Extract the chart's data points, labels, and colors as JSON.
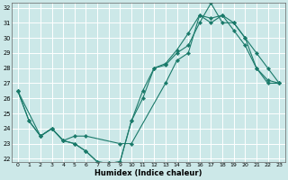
{
  "xlabel": "Humidex (Indice chaleur)",
  "bg_color": "#cce8e8",
  "grid_color": "#ffffff",
  "line_color": "#1a7a6a",
  "marker_color": "#1a7a6a",
  "xlim": [
    -0.5,
    23.5
  ],
  "ylim": [
    21.8,
    32.3
  ],
  "xticks": [
    0,
    1,
    2,
    3,
    4,
    5,
    6,
    7,
    8,
    9,
    10,
    11,
    12,
    13,
    14,
    15,
    16,
    17,
    18,
    19,
    20,
    21,
    22,
    23
  ],
  "yticks": [
    22,
    23,
    24,
    25,
    26,
    27,
    28,
    29,
    30,
    31,
    32
  ],
  "series": [
    {
      "x": [
        0,
        1,
        2,
        3,
        4,
        5,
        6,
        7,
        8,
        9,
        10,
        11,
        12,
        13,
        14,
        15,
        16,
        17,
        18,
        19,
        20,
        21,
        22,
        23
      ],
      "y": [
        26.5,
        24.5,
        23.5,
        24.0,
        23.2,
        23.0,
        22.5,
        21.8,
        21.7,
        21.8,
        24.5,
        26.5,
        28.0,
        28.2,
        29.0,
        29.5,
        31.0,
        32.3,
        31.0,
        31.0,
        30.0,
        28.0,
        27.2,
        27.0
      ]
    },
    {
      "x": [
        0,
        1,
        2,
        3,
        4,
        5,
        6,
        7,
        8,
        9,
        10,
        11,
        12,
        13,
        14,
        15,
        16,
        17,
        18,
        19,
        20,
        21,
        22,
        23
      ],
      "y": [
        26.5,
        24.5,
        23.5,
        24.0,
        23.2,
        23.0,
        22.5,
        21.8,
        21.7,
        21.8,
        24.5,
        26.0,
        28.0,
        28.3,
        29.2,
        30.3,
        31.5,
        31.3,
        31.5,
        30.5,
        29.5,
        28.0,
        27.0,
        27.0
      ]
    },
    {
      "x": [
        0,
        2,
        3,
        4,
        5,
        6,
        9,
        10,
        13,
        14,
        15,
        16,
        17,
        18,
        19,
        20,
        21,
        22,
        23
      ],
      "y": [
        26.5,
        23.5,
        24.0,
        23.2,
        23.5,
        23.5,
        23.0,
        23.0,
        27.0,
        28.5,
        29.0,
        31.5,
        31.0,
        31.5,
        31.0,
        30.0,
        29.0,
        28.0,
        27.0
      ]
    }
  ]
}
